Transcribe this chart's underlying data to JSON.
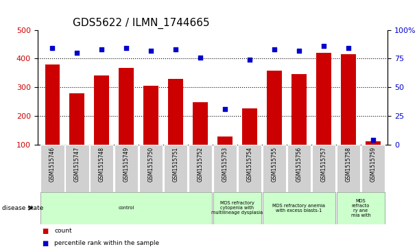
{
  "title": "GDS5622 / ILMN_1744665",
  "samples": [
    "GSM1515746",
    "GSM1515747",
    "GSM1515748",
    "GSM1515749",
    "GSM1515750",
    "GSM1515751",
    "GSM1515752",
    "GSM1515753",
    "GSM1515754",
    "GSM1515755",
    "GSM1515756",
    "GSM1515757",
    "GSM1515758",
    "GSM1515759"
  ],
  "counts": [
    380,
    278,
    340,
    368,
    305,
    328,
    247,
    128,
    225,
    357,
    345,
    420,
    415,
    110
  ],
  "percentile_ranks": [
    84,
    80,
    83,
    84,
    82,
    83,
    76,
    31,
    74,
    83,
    82,
    86,
    84,
    4
  ],
  "ylim_left": [
    100,
    500
  ],
  "ylim_right": [
    0,
    100
  ],
  "yticks_left": [
    100,
    200,
    300,
    400,
    500
  ],
  "yticks_right": [
    0,
    25,
    50,
    75,
    100
  ],
  "bar_color": "#cc0000",
  "dot_color": "#0000cc",
  "grid_color": "#000000",
  "disease_groups": [
    {
      "label": "control",
      "start": 0,
      "end": 7
    },
    {
      "label": "MDS refractory\ncytopenia with\nmultilineage dysplasia",
      "start": 7,
      "end": 9
    },
    {
      "label": "MDS refractory anemia\nwith excess blasts-1",
      "start": 9,
      "end": 12
    },
    {
      "label": "MDS\nrefracto\nry ane\nmia with",
      "start": 12,
      "end": 14
    }
  ],
  "disease_state_label": "disease state",
  "legend_count": "count",
  "legend_pct": "percentile rank within the sample",
  "title_fontsize": 11,
  "tick_fontsize": 8,
  "label_fontsize": 7,
  "group_color": "#ccffcc",
  "sample_box_color": "#d0d0d0"
}
